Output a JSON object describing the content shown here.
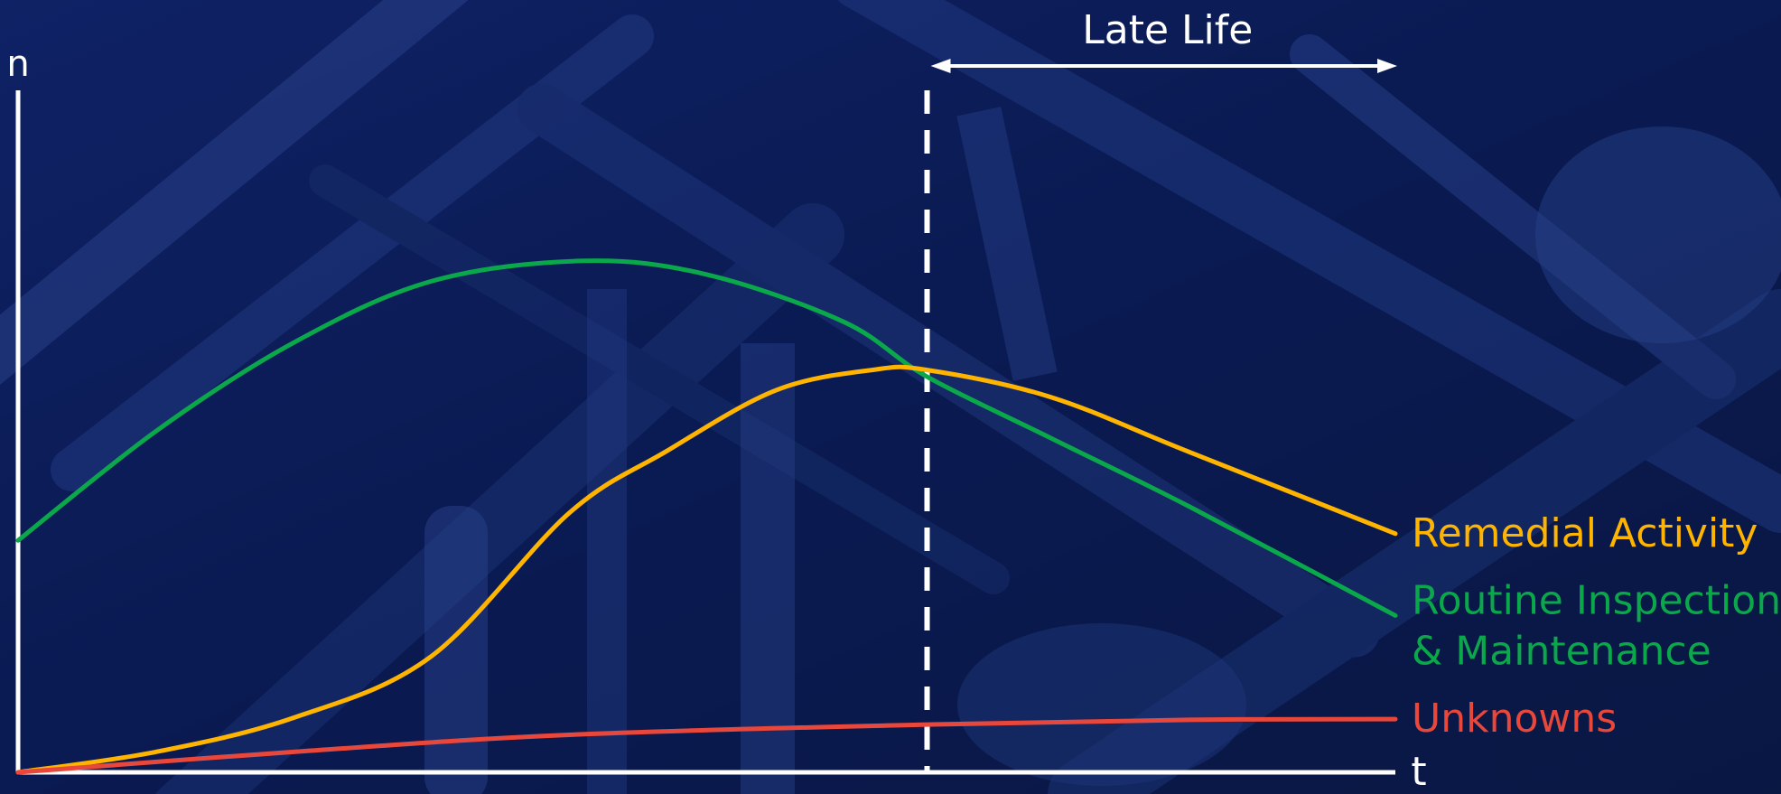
{
  "chart_data": {
    "type": "line",
    "xlabel": "t",
    "ylabel": "n",
    "xlim": [
      0,
      100
    ],
    "ylim": [
      0,
      100
    ],
    "grid": false,
    "legend": "right",
    "annotation": {
      "label": "Late Life",
      "x_start": 66,
      "x_end": 100,
      "divider_x": 66
    },
    "series": [
      {
        "name": "Routine Inspection & Maintenance",
        "name_lines": [
          "Routine Inspection",
          "& Maintenance"
        ],
        "color": "#0aa84a",
        "x": [
          0,
          10,
          20,
          30,
          41,
          50,
          60,
          66,
          75,
          85,
          100
        ],
        "y": [
          34,
          50,
          63,
          72,
          75,
          73,
          66,
          58,
          49,
          39,
          23
        ]
      },
      {
        "name": "Remedial Activity",
        "name_lines": [
          "Remedial Activity"
        ],
        "color": "#ffb500",
        "x": [
          0,
          10,
          20,
          30,
          40,
          47,
          55,
          62,
          66,
          75,
          85,
          100
        ],
        "y": [
          0,
          3,
          8,
          17,
          38,
          47,
          56,
          59,
          59,
          55,
          47,
          35
        ]
      },
      {
        "name": "Unknowns",
        "name_lines": [
          "Unknowns"
        ],
        "color": "#e8483c",
        "x": [
          0,
          20,
          40,
          66,
          85,
          100
        ],
        "y": [
          0,
          3,
          5.5,
          7,
          7.7,
          7.8
        ]
      }
    ]
  }
}
